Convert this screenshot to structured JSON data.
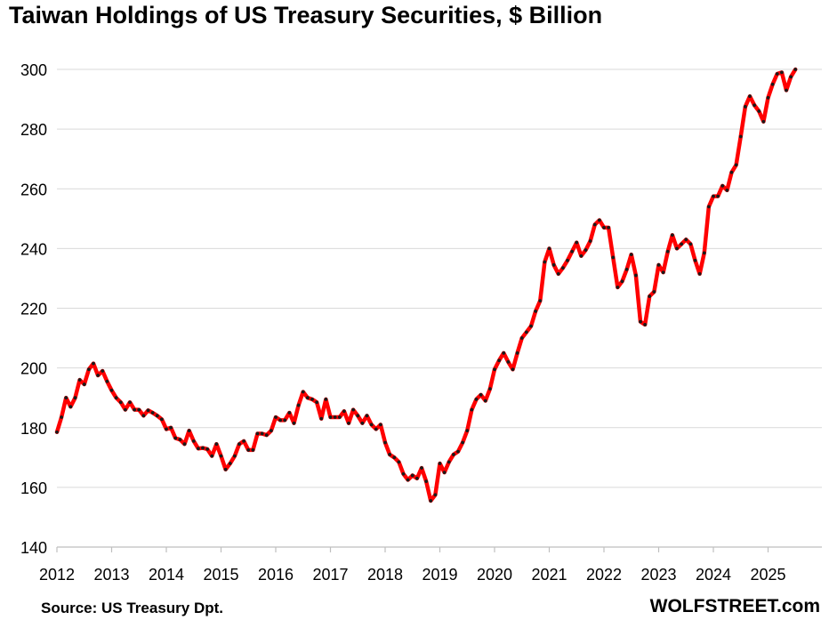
{
  "chart_data": {
    "type": "line",
    "title": "Taiwan Holdings of US Treasury Securities, $ Billion",
    "xlabel": "",
    "ylabel": "",
    "ylim": [
      140,
      300
    ],
    "y_ticks": [
      140,
      160,
      180,
      200,
      220,
      240,
      260,
      280,
      300
    ],
    "x_ticks": [
      "2012",
      "2013",
      "2014",
      "2015",
      "2016",
      "2017",
      "2018",
      "2019",
      "2020",
      "2021",
      "2022",
      "2023",
      "2024",
      "2025"
    ],
    "x_start_year": 2012,
    "grid": "horizontal",
    "line_color": "#ff0000",
    "marker_color": "#1a1a1a",
    "series": [
      {
        "values": [
          178.5,
          183.5,
          190,
          187,
          190,
          196,
          194.5,
          199.5,
          201.5,
          197.5,
          199,
          195.5,
          192.5,
          190,
          188.5,
          186,
          188.5,
          186,
          186,
          184,
          185.8,
          185,
          184,
          182.8,
          179.5,
          180,
          176.5,
          176,
          174.5,
          179,
          175.5,
          173,
          173.2,
          172.8,
          170.5,
          174.5,
          170.5,
          166,
          168,
          170.5,
          174.5,
          175.5,
          172.5,
          172.5,
          178,
          178,
          177.5,
          179,
          183.5,
          182.5,
          182.5,
          185,
          181.5,
          187.5,
          192,
          190,
          189.5,
          188.5,
          183,
          189.5,
          183.5,
          183.5,
          183.5,
          185.5,
          181.5,
          186,
          184,
          181.5,
          184,
          181,
          179.5,
          181,
          175,
          171,
          170,
          168.5,
          164.5,
          162.5,
          164,
          163,
          166.5,
          162,
          155.5,
          157.5,
          168,
          165,
          168.5,
          171,
          172,
          175,
          179,
          186,
          189.5,
          191,
          189,
          193,
          199.5,
          202.5,
          205,
          202,
          199.5,
          205,
          210,
          212,
          214,
          219,
          222.5,
          235.5,
          240,
          234.5,
          231.5,
          233.5,
          236,
          239,
          242,
          237.5,
          239.5,
          242.5,
          248,
          249.5,
          247,
          247,
          237,
          227,
          229,
          233,
          238,
          231,
          215.5,
          214.5,
          224,
          225.5,
          234.5,
          232,
          239,
          244.5,
          240,
          241.5,
          243,
          241.5,
          236,
          231.5,
          238.5,
          254,
          257.5,
          257.5,
          261,
          259.5,
          265.5,
          268,
          277.5,
          287.5,
          291,
          288,
          286,
          282.5,
          290.5,
          295,
          298.5,
          299,
          293,
          297.5,
          300
        ]
      }
    ],
    "source": "Source: US Treasury  Dpt.",
    "brand": "WOLFSTREET.com"
  }
}
